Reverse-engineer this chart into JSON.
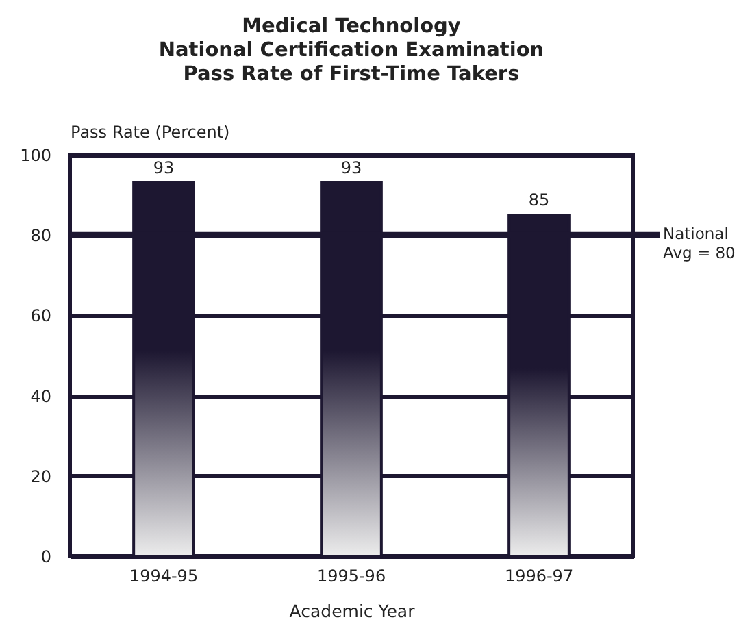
{
  "chart_data": {
    "type": "bar",
    "title": "Medical Technology\nNational Certification Examination\nPass Rate of First-Time Takers",
    "xlabel": "Academic Year",
    "ylabel": "Pass Rate (Percent)",
    "categories": [
      "1994-95",
      "1995-96",
      "1996-97"
    ],
    "values": [
      93,
      93,
      85
    ],
    "color": "#1d1731",
    "ylim": [
      0,
      100
    ],
    "yticks": [
      0,
      20,
      40,
      60,
      80,
      100
    ],
    "grid": "y",
    "data_labels": true,
    "ref_lines": [
      {
        "axis": "y",
        "value": 80,
        "label": "National\nAvg = 80"
      }
    ]
  }
}
